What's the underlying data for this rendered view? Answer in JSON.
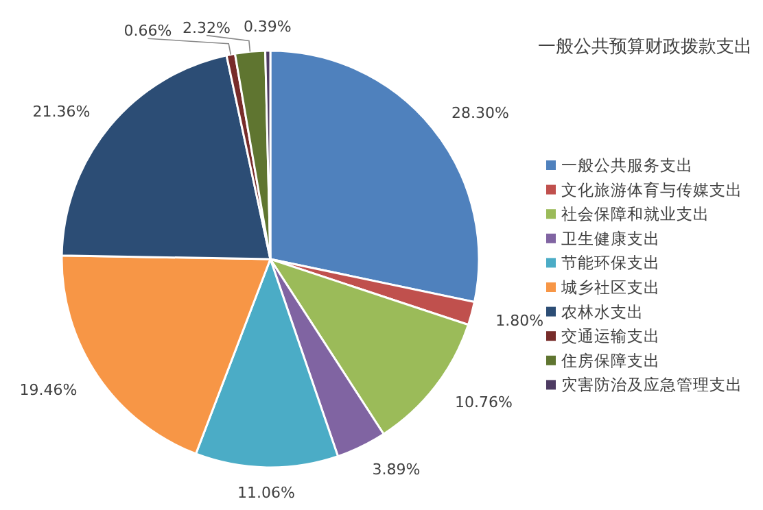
{
  "chart_data": {
    "type": "pie",
    "title": "一般公共预算财政拨款支出",
    "categories": [
      "一般公共服务支出",
      "文化旅游体育与传媒支出",
      "社会保障和就业支出",
      "卫生健康支出",
      "节能环保支出",
      "城乡社区支出",
      "农林水支出",
      "交通运输支出",
      "住房保障支出",
      "灾害防治及应急管理支出"
    ],
    "values": [
      28.3,
      1.8,
      10.76,
      3.89,
      11.06,
      19.46,
      21.36,
      0.66,
      2.32,
      0.39
    ],
    "colors": [
      "#4f81bd",
      "#c0504d",
      "#9bbb59",
      "#8064a2",
      "#4bacc6",
      "#f79646",
      "#2c4d75",
      "#772c2a",
      "#5f7530",
      "#4d3b62"
    ],
    "value_labels": [
      "28.30%",
      "1.80%",
      "10.76%",
      "3.89%",
      "11.06%",
      "19.46%",
      "21.36%",
      "0.66%",
      "2.32%",
      "0.39%"
    ],
    "legend": "right"
  }
}
